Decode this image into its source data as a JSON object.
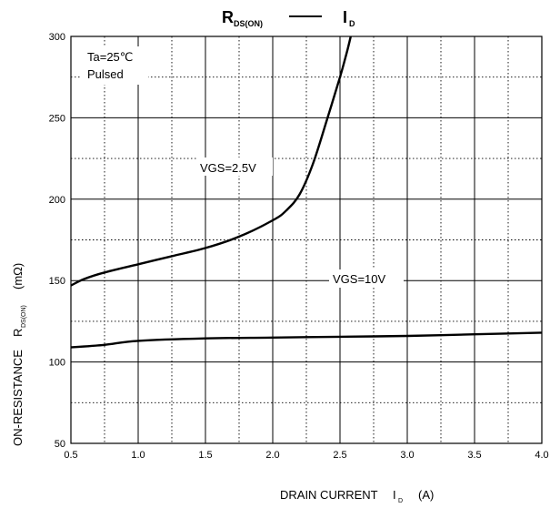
{
  "chart_data": {
    "type": "line",
    "title": {
      "left_main": "R",
      "left_sub": "DS(ON)",
      "right_main": "I",
      "right_sub": "D"
    },
    "xlabel": {
      "main": "DRAIN CURRENT",
      "symbol": "I",
      "symbol_sub": "D",
      "unit": "(A)"
    },
    "ylabel": {
      "main": "ON-RESISTANCE",
      "symbol": "R",
      "symbol_sub": "DS(ON)",
      "unit": "(mΩ)"
    },
    "xlim": [
      0.5,
      4.0
    ],
    "ylim": [
      50,
      300
    ],
    "x_ticks": [
      "0.5",
      "1.0",
      "1.5",
      "2.0",
      "2.5",
      "3.0",
      "3.5",
      "4.0"
    ],
    "y_ticks": [
      "50",
      "100",
      "150",
      "200",
      "250",
      "300"
    ],
    "grid": "major solid every 50 mΩ and 0.5 A, minor dotted",
    "conditions": [
      "Ta=25℃",
      "Pulsed"
    ],
    "series": [
      {
        "name": "VGS=2.5V",
        "x": [
          0.5,
          0.6,
          0.75,
          1.0,
          1.25,
          1.5,
          1.75,
          2.0,
          2.1,
          2.2,
          2.3,
          2.4,
          2.5,
          2.55,
          2.58
        ],
        "y": [
          147,
          151,
          155,
          160,
          165,
          170,
          177,
          187,
          193,
          203,
          222,
          248,
          275,
          290,
          300
        ]
      },
      {
        "name": "VGS=10V",
        "x": [
          0.5,
          0.75,
          1.0,
          1.5,
          2.0,
          2.5,
          3.0,
          3.5,
          4.0
        ],
        "y": [
          109,
          110.5,
          113,
          114.5,
          115,
          115.5,
          116,
          117,
          118
        ]
      }
    ]
  }
}
